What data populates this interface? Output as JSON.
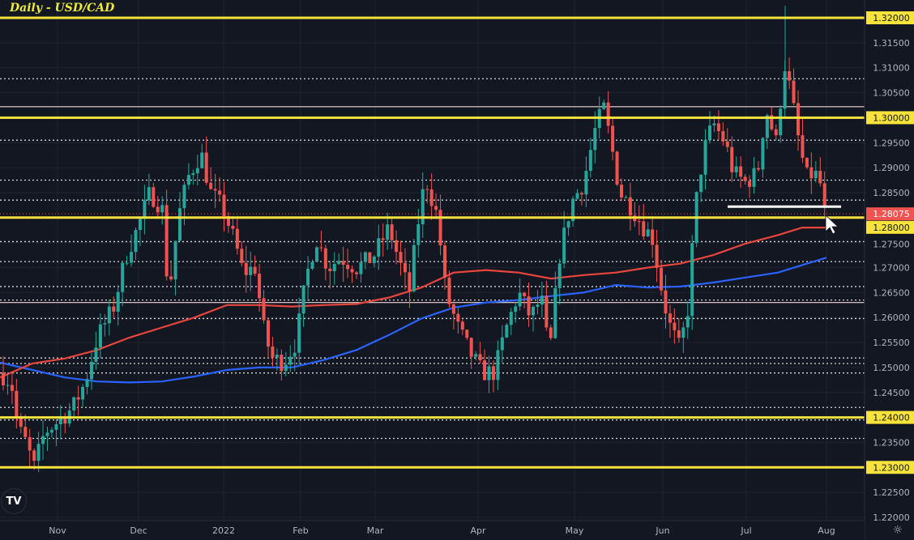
{
  "header": {
    "title": "Daily - USD/CAD",
    "symbol": "USD/CAD",
    "interval": "Daily"
  },
  "price_axis": {
    "ticks": [
      "1.32000",
      "1.31500",
      "1.31000",
      "1.30500",
      "1.30000",
      "1.29500",
      "1.29000",
      "1.28500",
      "1.28075",
      "1.28000",
      "1.27500",
      "1.27000",
      "1.26500",
      "1.26000",
      "1.25500",
      "1.25000",
      "1.24500",
      "1.24000",
      "1.23500",
      "1.23000",
      "1.22500",
      "1.22000"
    ],
    "current_price": "1.28075",
    "current_price_color": "#f05350"
  },
  "time_axis": {
    "labels": [
      "Nov",
      "Dec",
      "2022",
      "Feb",
      "Mar",
      "Apr",
      "May",
      "Jun",
      "Jul",
      "Aug"
    ]
  },
  "colors": {
    "background": "#131722",
    "up": "#26a69a",
    "down": "#ef5350",
    "ma_fast": "#e8453c",
    "ma_slow": "#2962ff",
    "horizontal_levels": "#f7e33c",
    "grid": "#1f2330"
  },
  "chart_data": {
    "type": "candlestick",
    "title": "Daily - USD/CAD",
    "xlabel": "",
    "ylabel": "",
    "ylim": [
      1.2185,
      1.3235
    ],
    "x_tick_labels": [
      "Nov",
      "Dec",
      "2022",
      "Feb",
      "Mar",
      "Apr",
      "May",
      "Jun",
      "Jul",
      "Aug"
    ],
    "y_tick_labels": [
      "1.32000",
      "1.31500",
      "1.31000",
      "1.30500",
      "1.30000",
      "1.29500",
      "1.29000",
      "1.28500",
      "1.28000",
      "1.27500",
      "1.27000",
      "1.26500",
      "1.26000",
      "1.25500",
      "1.25000",
      "1.24500",
      "1.24000",
      "1.23500",
      "1.23000",
      "1.22500",
      "1.22000"
    ],
    "grid": true,
    "last_price": 1.28075,
    "key_levels_yellow": [
      1.32,
      1.3,
      1.28,
      1.24,
      1.23
    ],
    "dotted_levels": [
      1.3078,
      1.2955,
      1.2875,
      1.2835,
      1.2752,
      1.2712,
      1.2662,
      1.2635,
      1.2598,
      1.2519,
      1.2508,
      1.2489,
      1.242,
      1.2395,
      1.2358
    ],
    "thin_solid_levels": [
      1.3022,
      1.263
    ],
    "annotation_line": {
      "y": 1.2822,
      "x_from": "late Jun",
      "x_to": "end Jul",
      "color": "#ffffff"
    },
    "series": [
      {
        "name": "MA fast (red)",
        "points": [
          [
            0,
            1.248
          ],
          [
            40,
            1.2508
          ],
          [
            80,
            1.2518
          ],
          [
            120,
            1.2535
          ],
          [
            160,
            1.256
          ],
          [
            200,
            1.258
          ],
          [
            240,
            1.26
          ],
          [
            280,
            1.2625
          ],
          [
            320,
            1.2625
          ],
          [
            360,
            1.2622
          ],
          [
            400,
            1.2625
          ],
          [
            440,
            1.2627
          ],
          [
            480,
            1.264
          ],
          [
            520,
            1.266
          ],
          [
            560,
            1.269
          ],
          [
            600,
            1.2695
          ],
          [
            640,
            1.269
          ],
          [
            680,
            1.2678
          ],
          [
            720,
            1.2685
          ],
          [
            760,
            1.269
          ],
          [
            800,
            1.27
          ],
          [
            840,
            1.2708
          ],
          [
            880,
            1.2725
          ],
          [
            920,
            1.2748
          ],
          [
            960,
            1.2765
          ],
          [
            990,
            1.278
          ],
          [
            1020,
            1.278
          ]
        ]
      },
      {
        "name": "MA slow (blue)",
        "points": [
          [
            0,
            1.251
          ],
          [
            40,
            1.2495
          ],
          [
            80,
            1.248
          ],
          [
            120,
            1.2472
          ],
          [
            160,
            1.247
          ],
          [
            200,
            1.2472
          ],
          [
            240,
            1.2482
          ],
          [
            280,
            1.2495
          ],
          [
            320,
            1.25
          ],
          [
            360,
            1.25
          ],
          [
            400,
            1.2515
          ],
          [
            440,
            1.2535
          ],
          [
            480,
            1.2565
          ],
          [
            520,
            1.2598
          ],
          [
            560,
            1.262
          ],
          [
            600,
            1.263
          ],
          [
            640,
            1.2635
          ],
          [
            680,
            1.2643
          ],
          [
            720,
            1.265
          ],
          [
            760,
            1.2665
          ],
          [
            800,
            1.266
          ],
          [
            840,
            1.2662
          ],
          [
            880,
            1.267
          ],
          [
            920,
            1.268
          ],
          [
            960,
            1.269
          ],
          [
            990,
            1.2705
          ],
          [
            1020,
            1.272
          ]
        ]
      }
    ],
    "candles_summary": {
      "period": "Oct 2021 – end Jul 2022",
      "notable": {
        "low_nov": 1.229,
        "high_dec": 1.2965,
        "low_jan": 1.245,
        "high_mar": 1.29,
        "low_apr": 1.2402,
        "high_may": 1.3077,
        "low_jun": 1.2518,
        "high_jul": 1.3224,
        "last_close": 1.28075
      }
    }
  }
}
